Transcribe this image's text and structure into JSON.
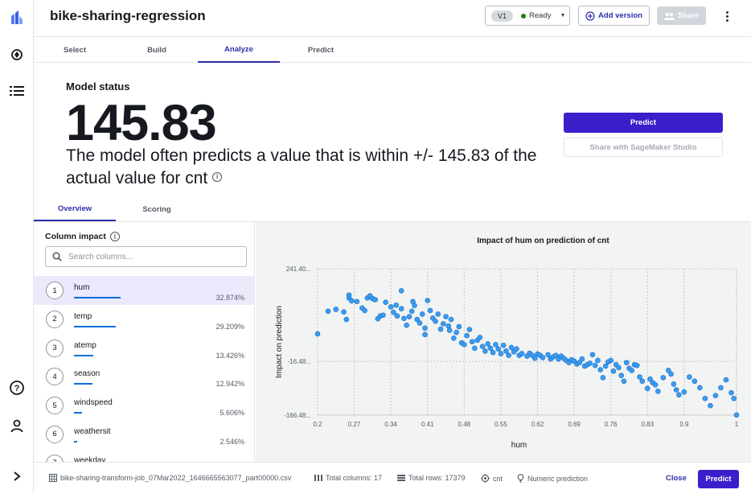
{
  "rail": {
    "icons": [
      "canvas-logo-icon",
      "models-icon",
      "list-icon",
      "help-icon",
      "user-icon",
      "expand-icon"
    ]
  },
  "header": {
    "title": "bike-sharing-regression",
    "version_badge": "V1",
    "status": "Ready",
    "status_color": "#1d8102",
    "add_version": "Add version",
    "share": "Share"
  },
  "main_tabs": [
    "Select",
    "Build",
    "Analyze",
    "Predict"
  ],
  "main_tab_active": "Analyze",
  "status": {
    "heading": "Model status",
    "value": "145.83",
    "description": "The model often predicts a value that is within +/- 145.83 of the actual value for cnt",
    "predict_button": "Predict",
    "studio_button": "Share with SageMaker Studio"
  },
  "sub_tabs": [
    "Overview",
    "Scoring"
  ],
  "sub_tab_active": "Overview",
  "columns": {
    "heading": "Column impact",
    "search_placeholder": "Search columns...",
    "items": [
      {
        "rank": "1",
        "name": "hum",
        "pct": "32.874%",
        "impact": 0.32874
      },
      {
        "rank": "2",
        "name": "temp",
        "pct": "29.209%",
        "impact": 0.29209
      },
      {
        "rank": "3",
        "name": "atemp",
        "pct": "13.426%",
        "impact": 0.13426
      },
      {
        "rank": "4",
        "name": "season",
        "pct": "12.942%",
        "impact": 0.12942
      },
      {
        "rank": "5",
        "name": "windspeed",
        "pct": "5.606%",
        "impact": 0.05606
      },
      {
        "rank": "6",
        "name": "weathersit",
        "pct": "2.546%",
        "impact": 0.02546
      },
      {
        "rank": "7",
        "name": "weekday",
        "pct": "",
        "impact": 0
      }
    ]
  },
  "chart_data": {
    "type": "scatter",
    "title": "Impact of hum on prediction of cnt",
    "xlabel": "hum",
    "ylabel": "Impact on prediction",
    "xlim": [
      0.2,
      1
    ],
    "ylim": [
      -166.48,
      241.4
    ],
    "xticks": [
      "0.2",
      "0.27",
      "0.34",
      "0.41",
      "0.48",
      "0.55",
      "0.62",
      "0.69",
      "0.76",
      "0.83",
      "0.9",
      "1"
    ],
    "yticks": [
      241.4,
      -16.48,
      -166.48
    ],
    "ytick_labels": [
      "241.40...",
      "-16.48...",
      "-166.48..."
    ],
    "grid": true,
    "point_color": "#3b9cf0",
    "points": [
      [
        0.2,
        60
      ],
      [
        0.22,
        123
      ],
      [
        0.235,
        128
      ],
      [
        0.25,
        121
      ],
      [
        0.255,
        100
      ],
      [
        0.26,
        160
      ],
      [
        0.26,
        168
      ],
      [
        0.265,
        152
      ],
      [
        0.275,
        150
      ],
      [
        0.285,
        132
      ],
      [
        0.29,
        125
      ],
      [
        0.295,
        160
      ],
      [
        0.3,
        166
      ],
      [
        0.305,
        158
      ],
      [
        0.31,
        155
      ],
      [
        0.315,
        102
      ],
      [
        0.32,
        110
      ],
      [
        0.325,
        112
      ],
      [
        0.33,
        148
      ],
      [
        0.34,
        135
      ],
      [
        0.345,
        120
      ],
      [
        0.35,
        140
      ],
      [
        0.352,
        110
      ],
      [
        0.36,
        180
      ],
      [
        0.36,
        130
      ],
      [
        0.365,
        103
      ],
      [
        0.37,
        84
      ],
      [
        0.375,
        108
      ],
      [
        0.38,
        123
      ],
      [
        0.382,
        150
      ],
      [
        0.385,
        139
      ],
      [
        0.39,
        100
      ],
      [
        0.395,
        90
      ],
      [
        0.4,
        115
      ],
      [
        0.405,
        76
      ],
      [
        0.405,
        58
      ],
      [
        0.41,
        153
      ],
      [
        0.415,
        125
      ],
      [
        0.42,
        104
      ],
      [
        0.425,
        95
      ],
      [
        0.43,
        115
      ],
      [
        0.435,
        73
      ],
      [
        0.44,
        88
      ],
      [
        0.445,
        108
      ],
      [
        0.45,
        82
      ],
      [
        0.452,
        70
      ],
      [
        0.455,
        100
      ],
      [
        0.46,
        48
      ],
      [
        0.465,
        64
      ],
      [
        0.47,
        80
      ],
      [
        0.475,
        35
      ],
      [
        0.48,
        30
      ],
      [
        0.485,
        55
      ],
      [
        0.49,
        72
      ],
      [
        0.495,
        38
      ],
      [
        0.5,
        20
      ],
      [
        0.505,
        42
      ],
      [
        0.51,
        50
      ],
      [
        0.515,
        25
      ],
      [
        0.52,
        12
      ],
      [
        0.525,
        32
      ],
      [
        0.53,
        20
      ],
      [
        0.535,
        8
      ],
      [
        0.54,
        30
      ],
      [
        0.545,
        18
      ],
      [
        0.55,
        5
      ],
      [
        0.555,
        28
      ],
      [
        0.56,
        12
      ],
      [
        0.565,
        0
      ],
      [
        0.57,
        22
      ],
      [
        0.575,
        10
      ],
      [
        0.58,
        18
      ],
      [
        0.585,
        0
      ],
      [
        0.59,
        5
      ],
      [
        0.6,
        -2
      ],
      [
        0.605,
        6
      ],
      [
        0.61,
        0
      ],
      [
        0.615,
        -8
      ],
      [
        0.62,
        4
      ],
      [
        0.625,
        0
      ],
      [
        0.63,
        -6
      ],
      [
        0.64,
        2
      ],
      [
        0.645,
        -10
      ],
      [
        0.65,
        -4
      ],
      [
        0.655,
        0
      ],
      [
        0.66,
        -10
      ],
      [
        0.665,
        -2
      ],
      [
        0.67,
        -8
      ],
      [
        0.675,
        -14
      ],
      [
        0.68,
        -20
      ],
      [
        0.685,
        -12
      ],
      [
        0.69,
        -16
      ],
      [
        0.695,
        -24
      ],
      [
        0.7,
        -20
      ],
      [
        0.705,
        -10
      ],
      [
        0.71,
        -30
      ],
      [
        0.715,
        -26
      ],
      [
        0.72,
        -22
      ],
      [
        0.725,
        2
      ],
      [
        0.73,
        -28
      ],
      [
        0.735,
        -14
      ],
      [
        0.74,
        -40
      ],
      [
        0.745,
        -62
      ],
      [
        0.75,
        -30
      ],
      [
        0.755,
        -18
      ],
      [
        0.76,
        -14
      ],
      [
        0.765,
        -44
      ],
      [
        0.77,
        -26
      ],
      [
        0.775,
        -34
      ],
      [
        0.78,
        -56
      ],
      [
        0.785,
        -72
      ],
      [
        0.79,
        -20
      ],
      [
        0.795,
        -36
      ],
      [
        0.8,
        -42
      ],
      [
        0.805,
        -26
      ],
      [
        0.81,
        -28
      ],
      [
        0.815,
        -60
      ],
      [
        0.82,
        -72
      ],
      [
        0.83,
        -92
      ],
      [
        0.835,
        -66
      ],
      [
        0.84,
        -76
      ],
      [
        0.845,
        -82
      ],
      [
        0.85,
        -100
      ],
      [
        0.86,
        -62
      ],
      [
        0.87,
        -42
      ],
      [
        0.875,
        -52
      ],
      [
        0.88,
        -80
      ],
      [
        0.885,
        -96
      ],
      [
        0.89,
        -110
      ],
      [
        0.9,
        -102
      ],
      [
        0.91,
        -60
      ],
      [
        0.92,
        -72
      ],
      [
        0.93,
        -90
      ],
      [
        0.94,
        -120
      ],
      [
        0.95,
        -140
      ],
      [
        0.96,
        -112
      ],
      [
        0.97,
        -90
      ],
      [
        0.98,
        -68
      ],
      [
        0.99,
        -104
      ],
      [
        0.995,
        -120
      ],
      [
        1.0,
        -166
      ]
    ]
  },
  "footer": {
    "file": "bike-sharing-transform-job_07Mar2022_1646665563077_part00000.csv",
    "total_columns": "Total columns: 17",
    "total_rows": "Total rows: 17379",
    "target": "cnt",
    "problem_type": "Numeric prediction",
    "close": "Close",
    "predict": "Predict"
  }
}
